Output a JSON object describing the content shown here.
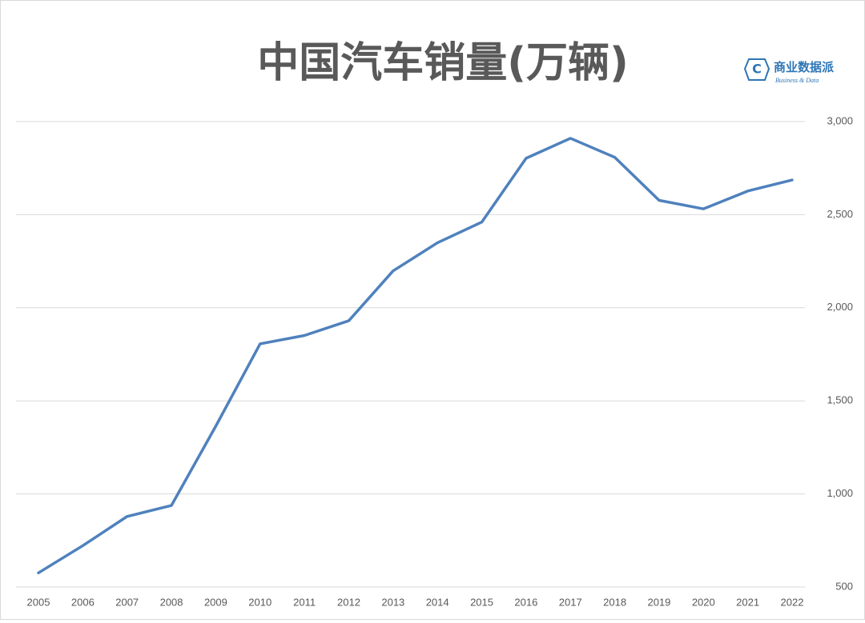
{
  "chart_data": {
    "type": "line",
    "title": "中国汽车销量(万辆)",
    "logo": {
      "icon": "C",
      "name": "商业数据派",
      "tagline": "Business & Data"
    },
    "categories": [
      "2005",
      "2006",
      "2007",
      "2008",
      "2009",
      "2010",
      "2011",
      "2012",
      "2013",
      "2014",
      "2015",
      "2016",
      "2017",
      "2018",
      "2019",
      "2020",
      "2021",
      "2022"
    ],
    "series": [
      {
        "name": "汽车销量",
        "color": "#4f81bd",
        "values": [
          576,
          722,
          879,
          938,
          1364,
          1806,
          1851,
          1930,
          2198,
          2349,
          2460,
          2803,
          2910,
          2808,
          2577,
          2531,
          2627,
          2686
        ]
      }
    ],
    "ylim": [
      500,
      3000
    ],
    "yticks": [
      500,
      {
        "value": 1000,
        "label": "1,000"
      },
      {
        "value": 1500,
        "label": "1,500"
      },
      {
        "value": 2000,
        "label": "2,000"
      },
      {
        "value": 2500,
        "label": "2,500"
      },
      {
        "value": 3000,
        "label": "3,000"
      }
    ],
    "grid": true,
    "y_axis_side": "right"
  }
}
